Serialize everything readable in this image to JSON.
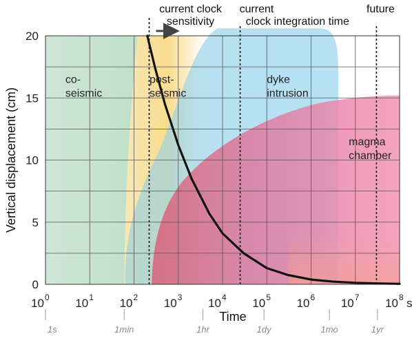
{
  "chart_data": {
    "type": "line",
    "xlabel": "Time",
    "ylabel": "Vertical displacement (cm)",
    "x_unit": "s",
    "x_scale": "log",
    "xlim": [
      1,
      100000000
    ],
    "ylim": [
      0,
      20
    ],
    "x_ticks": [
      {
        "value": 1,
        "base": "10",
        "exp": "0"
      },
      {
        "value": 10,
        "base": "10",
        "exp": "1"
      },
      {
        "value": 100,
        "base": "10",
        "exp": "2"
      },
      {
        "value": 1000,
        "base": "10",
        "exp": "3"
      },
      {
        "value": 10000,
        "base": "10",
        "exp": "4"
      },
      {
        "value": 100000,
        "base": "10",
        "exp": "5"
      },
      {
        "value": 1000000,
        "base": "10",
        "exp": "6"
      },
      {
        "value": 10000000,
        "base": "10",
        "exp": "7"
      },
      {
        "value": 100000000,
        "base": "10",
        "exp": "8"
      }
    ],
    "y_ticks": [
      0,
      5,
      10,
      15,
      20
    ],
    "grid": true,
    "time_scale_labels": [
      {
        "label": "1s",
        "value": 1
      },
      {
        "label": "1min",
        "value": 60
      },
      {
        "label": "1hr",
        "value": 3600
      },
      {
        "label": "1dy",
        "value": 86400
      },
      {
        "label": "1mo",
        "value": 2600000
      },
      {
        "label": "1yr",
        "value": 31500000
      }
    ],
    "regions": [
      {
        "name": "co-seismic",
        "lines": [
          "co-",
          "seismic"
        ],
        "color": "#9fd3ad"
      },
      {
        "name": "post-seismic",
        "lines": [
          "post-",
          "seismic"
        ],
        "color": "#f8d57e"
      },
      {
        "name": "dyke intrusion",
        "lines": [
          "dyke",
          "intrusion"
        ],
        "color": "#7ec8e3"
      },
      {
        "name": "magma chamber",
        "lines": [
          "magma",
          "chamber"
        ],
        "color": "#e8769f"
      }
    ],
    "series": [
      {
        "color": "#111111",
        "x": [
          200,
          300,
          500,
          1000,
          2000,
          5000,
          10000,
          30000,
          100000,
          300000,
          1000000,
          3000000,
          10000000,
          30000000,
          100000000
        ],
        "y": [
          20,
          17.4,
          14.5,
          11.2,
          8.5,
          5.7,
          4.1,
          2.5,
          1.3,
          0.75,
          0.38,
          0.22,
          0.12,
          0.07,
          0.04
        ]
      }
    ],
    "annotations": [
      {
        "lines": [
          "current clock",
          "sensitivity"
        ],
        "x_value": 220,
        "arrow_to": 700
      },
      {
        "lines": [
          "current",
          "clock integration time"
        ],
        "x_value": 25000
      },
      {
        "lines": [
          "future"
        ],
        "x_value": 30000000
      }
    ]
  }
}
